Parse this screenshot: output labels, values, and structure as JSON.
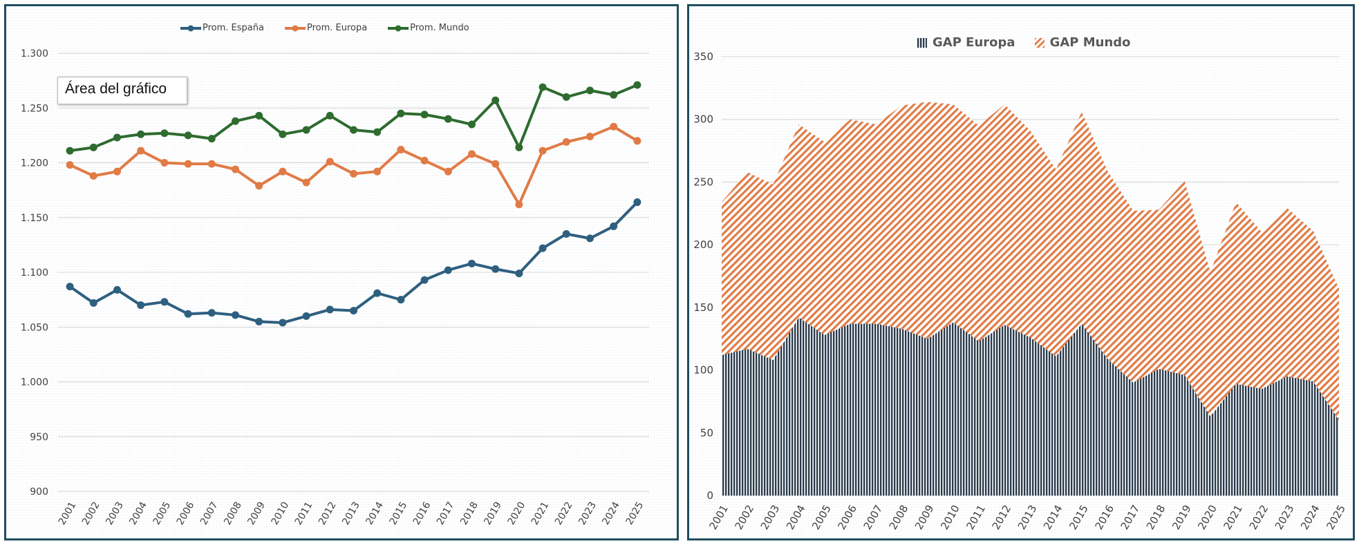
{
  "chart_data": [
    {
      "type": "line",
      "title": "",
      "xlabel": "",
      "ylabel": "",
      "categories": [
        "2001",
        "2002",
        "2003",
        "2004",
        "2005",
        "2006",
        "2007",
        "2008",
        "2009",
        "2010",
        "2011",
        "2012",
        "2013",
        "2014",
        "2015",
        "2016",
        "2017",
        "2018",
        "2019",
        "2020",
        "2021",
        "2022",
        "2023",
        "2024",
        "2025"
      ],
      "ylim": [
        900,
        1300
      ],
      "yticks": [
        "900",
        "950",
        "1.000",
        "1.050",
        "1.100",
        "1.150",
        "1.200",
        "1.250",
        "1.300"
      ],
      "ytick_values": [
        900,
        950,
        1000,
        1050,
        1100,
        1150,
        1200,
        1250,
        1300
      ],
      "series": [
        {
          "name": "Prom. España",
          "color": "#2e5f7f",
          "values": [
            1087,
            1072,
            1084,
            1070,
            1073,
            1062,
            1063,
            1061,
            1055,
            1054,
            1060,
            1066,
            1065,
            1081,
            1075,
            1093,
            1102,
            1108,
            1103,
            1099,
            1122,
            1135,
            1131,
            1142,
            1164
          ]
        },
        {
          "name": "Prom. Europa",
          "color": "#e07b45",
          "values": [
            1198,
            1188,
            1192,
            1211,
            1200,
            1199,
            1199,
            1194,
            1179,
            1192,
            1182,
            1201,
            1190,
            1192,
            1212,
            1202,
            1192,
            1208,
            1199,
            1162,
            1211,
            1219,
            1224,
            1233,
            1220
          ]
        },
        {
          "name": "Prom. Mundo",
          "color": "#2e6b2f",
          "values": [
            1211,
            1214,
            1223,
            1226,
            1227,
            1225,
            1222,
            1238,
            1243,
            1226,
            1230,
            1243,
            1230,
            1228,
            1245,
            1244,
            1240,
            1235,
            1257,
            1214,
            1269,
            1260,
            1266,
            1262,
            1271
          ]
        }
      ],
      "tooltip": "Área del gráfico"
    },
    {
      "type": "area",
      "title": "",
      "xlabel": "",
      "ylabel": "",
      "categories": [
        "2001",
        "2002",
        "2003",
        "2004",
        "2005",
        "2006",
        "2007",
        "2008",
        "2009",
        "2010",
        "2011",
        "2012",
        "2013",
        "2014",
        "2015",
        "2016",
        "2017",
        "2018",
        "2019",
        "2020",
        "2021",
        "2022",
        "2023",
        "2024",
        "2025"
      ],
      "ylim": [
        0,
        350
      ],
      "yticks": [
        "0",
        "50",
        "100",
        "150",
        "200",
        "250",
        "300",
        "350"
      ],
      "ytick_values": [
        0,
        50,
        100,
        150,
        200,
        250,
        300,
        350
      ],
      "stacked": false,
      "series": [
        {
          "name": "GAP Mundo",
          "color": "#e07b45",
          "pattern": "diagonal-stripes",
          "values": [
            234,
            258,
            248,
            296,
            282,
            300,
            296,
            311,
            314,
            312,
            295,
            312,
            291,
            260,
            306,
            259,
            227,
            228,
            251,
            178,
            234,
            210,
            229,
            211,
            165
          ]
        },
        {
          "name": "GAP Europa",
          "color": "#2a3b4c",
          "pattern": "vertical-stripes",
          "values": [
            112,
            117,
            108,
            142,
            128,
            137,
            137,
            133,
            125,
            138,
            123,
            136,
            126,
            111,
            137,
            109,
            90,
            101,
            96,
            63,
            89,
            85,
            95,
            91,
            60
          ]
        }
      ],
      "legend": [
        "GAP Europa",
        "GAP Mundo"
      ]
    }
  ]
}
